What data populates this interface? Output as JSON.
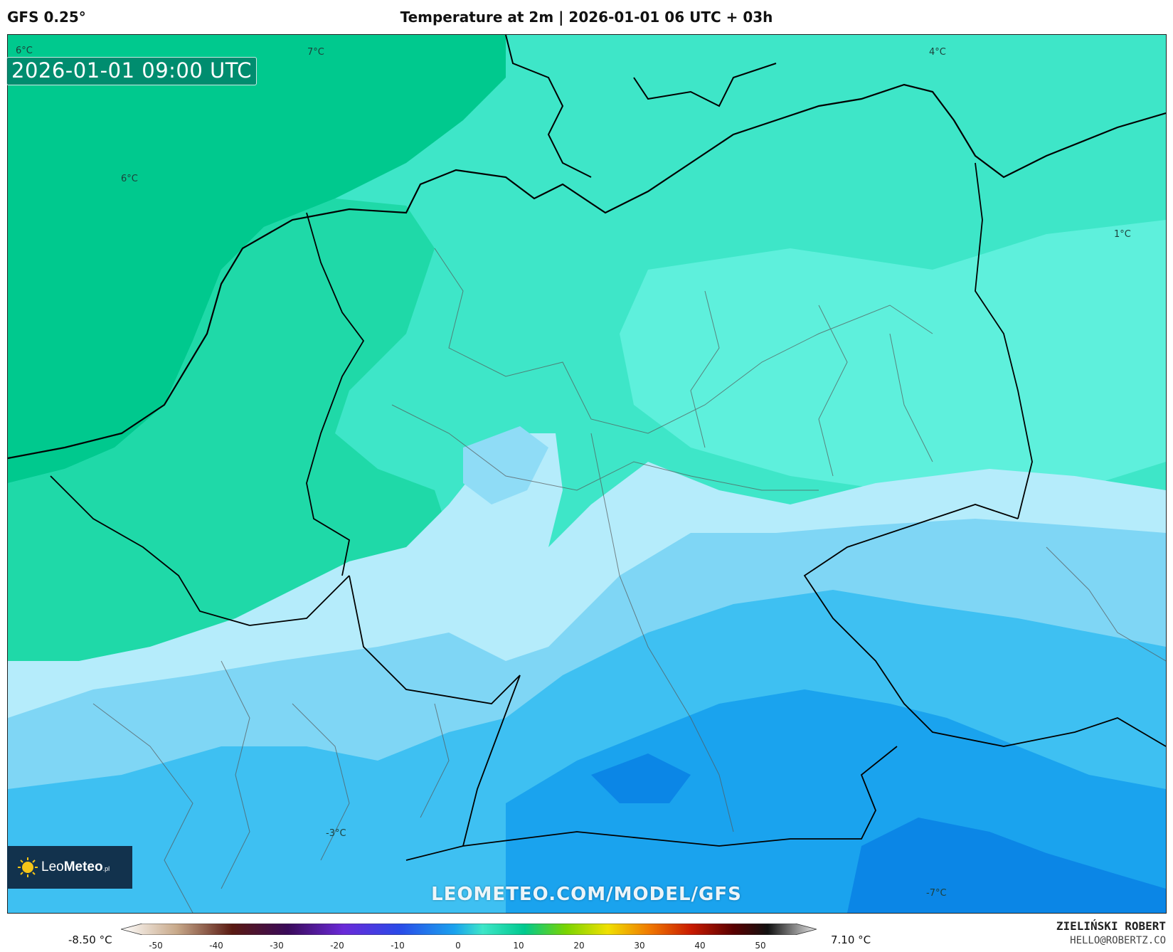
{
  "header": {
    "model": "GFS 0.25°",
    "title": "Temperature at 2m | 2026-01-01 06 UTC + 03h"
  },
  "map": {
    "valid_time": "2026-01-01 09:00 UTC",
    "watermark": "LEOMETEO.COM/MODEL/GFS",
    "contour_labels": [
      "6°C",
      "7°C",
      "4°C",
      "6°C",
      "1°C",
      "-3°C",
      "-7°C"
    ],
    "colors": {
      "warm_green": "#00c98e",
      "mid_green": "#1fd9a8",
      "teal": "#3ee6c8",
      "aqua": "#5ef0dc",
      "pale_blue": "#b5ecfb",
      "light_blue": "#7fd6f5",
      "blue": "#3ec0f2",
      "deep_blue": "#1aa3ee",
      "darker_blue": "#0b86e6"
    }
  },
  "logo": {
    "icon": "sun-icon",
    "brand_light": "Leo",
    "brand_bold": "Meteo",
    "suffix": ".pl"
  },
  "legend": {
    "min_label": "-8.50 °C",
    "max_label": "7.10 °C",
    "ticks": [
      "-50",
      "-40",
      "-30",
      "-20",
      "-10",
      "0",
      "10",
      "20",
      "30",
      "40",
      "50"
    ]
  },
  "credits": {
    "name": "ZIELIŃSKI ROBERT",
    "email": "HELLO@ROBERTZ.CO"
  }
}
